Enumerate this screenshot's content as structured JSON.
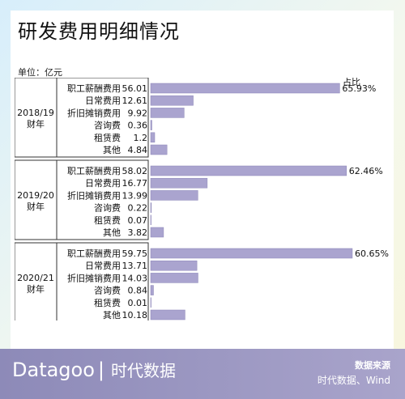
{
  "title": "研发费用明细情况",
  "unit_label": "单位：亿元",
  "pct_header": "占比",
  "footer": {
    "brand": "Datagoo",
    "brand_cn": "时代数据",
    "source_label": "数据来源",
    "source_text": "时代数据、Wind"
  },
  "colors": {
    "bar": "#aaa4cf",
    "bar_stroke": "#8c86b8",
    "footer": "#9b97c3",
    "panel_line": "#333333"
  },
  "chart_data": {
    "type": "bar",
    "orientation": "horizontal",
    "title": "研发费用明细情况",
    "unit": "亿元",
    "groups": [
      {
        "label_line1": "2018/19",
        "label_line2": "财年",
        "items": [
          {
            "name": "职工薪酬费用",
            "value": 56.01,
            "value_text": "56.01",
            "pct": "65.93%"
          },
          {
            "name": "日常费用",
            "value": 12.61,
            "value_text": "12.61"
          },
          {
            "name": "折旧摊销费用",
            "value": 9.92,
            "value_text": "9.92"
          },
          {
            "name": "咨询费",
            "value": 0.36,
            "value_text": "0.36"
          },
          {
            "name": "租赁费",
            "value": 1.2,
            "value_text": "1.2"
          },
          {
            "name": "其他",
            "value": 4.84,
            "value_text": "4.84"
          }
        ]
      },
      {
        "label_line1": "2019/20",
        "label_line2": "财年",
        "items": [
          {
            "name": "职工薪酬费用",
            "value": 58.02,
            "value_text": "58.02",
            "pct": "62.46%"
          },
          {
            "name": "日常费用",
            "value": 16.77,
            "value_text": "16.77"
          },
          {
            "name": "折旧摊销费用",
            "value": 13.99,
            "value_text": "13.99"
          },
          {
            "name": "咨询费",
            "value": 0.22,
            "value_text": "0.22"
          },
          {
            "name": "租赁费",
            "value": 0.07,
            "value_text": "0.07"
          },
          {
            "name": "其他",
            "value": 3.82,
            "value_text": "3.82"
          }
        ]
      },
      {
        "label_line1": "2020/21",
        "label_line2": "财年",
        "items": [
          {
            "name": "职工薪酬费用",
            "value": 59.75,
            "value_text": "59.75",
            "pct": "60.65%"
          },
          {
            "name": "日常费用",
            "value": 13.71,
            "value_text": "13.71"
          },
          {
            "name": "折旧摊销费用",
            "value": 14.03,
            "value_text": "14.03"
          },
          {
            "name": "咨询费",
            "value": 0.84,
            "value_text": "0.84"
          },
          {
            "name": "租赁费",
            "value": 0.01,
            "value_text": "0.01"
          },
          {
            "name": "其他",
            "value": 10.18,
            "value_text": "10.18"
          }
        ]
      }
    ]
  }
}
